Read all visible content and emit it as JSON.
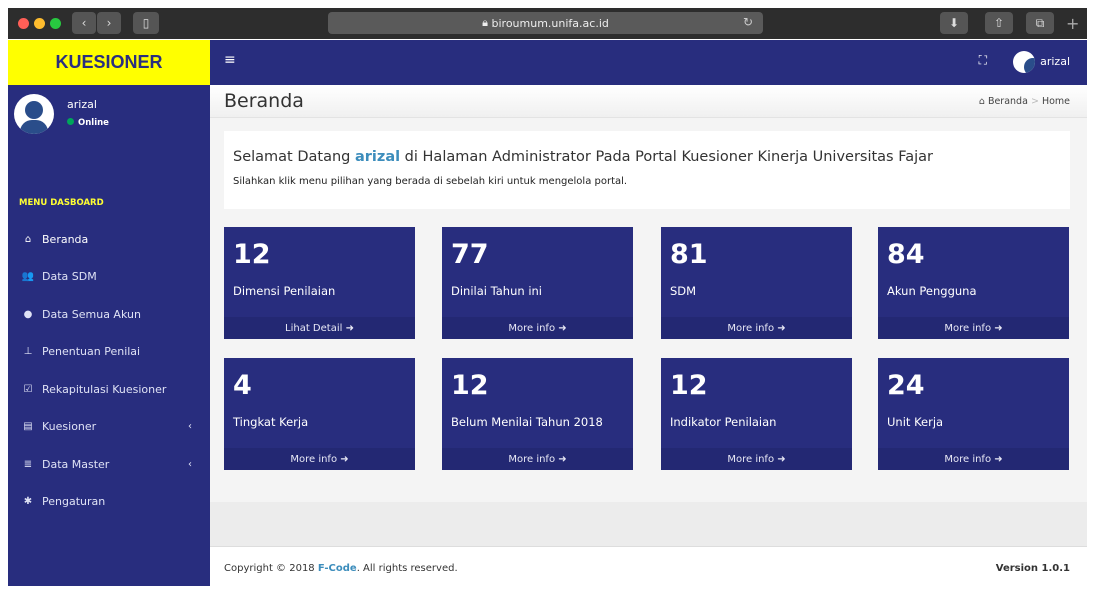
{
  "browser": {
    "url": "biroumum.unifa.ac.id",
    "traffic_colors": [
      "#ff5f57",
      "#febc2e",
      "#28c840"
    ]
  },
  "app": {
    "logo": "KUESIONER",
    "user": "arizal",
    "status": "Online",
    "menu_header": "MENU DASBOARD"
  },
  "sidebar": {
    "items": [
      {
        "label": "Beranda",
        "icon": "home-icon",
        "glyph": "⌂",
        "chevron": ""
      },
      {
        "label": "Data SDM",
        "icon": "users-icon",
        "glyph": "👥",
        "chevron": ""
      },
      {
        "label": "Data Semua Akun",
        "icon": "user-icon",
        "glyph": "●",
        "chevron": ""
      },
      {
        "label": "Penentuan Penilai",
        "icon": "sitemap-icon",
        "glyph": "⊥",
        "chevron": ""
      },
      {
        "label": "Rekapitulasi Kuesioner",
        "icon": "check-square-icon",
        "glyph": "☑",
        "chevron": ""
      },
      {
        "label": "Kuesioner",
        "icon": "file-icon",
        "glyph": "▤",
        "chevron": "‹"
      },
      {
        "label": "Data Master",
        "icon": "database-icon",
        "glyph": "≣",
        "chevron": "‹"
      },
      {
        "label": "Pengaturan",
        "icon": "gear-icon",
        "glyph": "✱",
        "chevron": ""
      }
    ]
  },
  "content": {
    "title": "Beranda",
    "breadcrumb": [
      "Beranda",
      "Home"
    ],
    "welcome_pre": "Selamat Datang ",
    "welcome_user": "arizal",
    "welcome_post": " di Halaman Administrator Pada Portal Kuesioner Kinerja Universitas Fajar",
    "subtitle": "Silahkan klik menu pilihan yang berada di sebelah kiri untuk mengelola portal."
  },
  "boxes": [
    {
      "number": "12",
      "label": "Dimensi Penilaian",
      "link": "Lihat Detail"
    },
    {
      "number": "77",
      "label": "Dinilai Tahun ini",
      "link": "More info"
    },
    {
      "number": "81",
      "label": "SDM",
      "link": "More info"
    },
    {
      "number": "84",
      "label": "Akun Pengguna",
      "link": "More info"
    },
    {
      "number": "4",
      "label": "Tingkat Kerja",
      "link": "More info"
    },
    {
      "number": "12",
      "label": "Belum Menilai Tahun 2018",
      "link": "More info"
    },
    {
      "number": "12",
      "label": "Indikator Penilaian",
      "link": "More info"
    },
    {
      "number": "24",
      "label": "Unit Kerja",
      "link": "More info"
    }
  ],
  "footer": {
    "pre": "Copyright © 2018 ",
    "brand": "F-Code",
    "post": ". All rights reserved.",
    "version": "Version 1.0.1"
  },
  "colors": {
    "primary": "#282d7e",
    "logo_bg": "#ffff00",
    "link": "#3c8dbc"
  }
}
